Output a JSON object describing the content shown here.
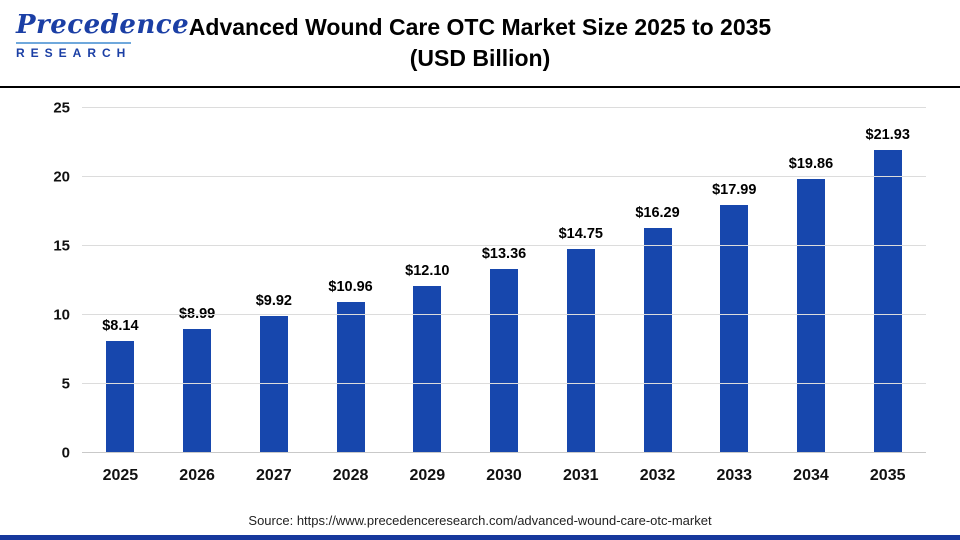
{
  "header": {
    "logo_main": "Precedence",
    "logo_sub": "RESEARCH",
    "title_line1": "Advanced Wound Care OTC Market Size 2025 to 2035",
    "title_line2": "(USD Billion)"
  },
  "chart_data": {
    "type": "bar",
    "title": "Advanced Wound Care OTC Market Size 2025 to 2035 (USD Billion)",
    "categories": [
      "2025",
      "2026",
      "2027",
      "2028",
      "2029",
      "2030",
      "2031",
      "2032",
      "2033",
      "2034",
      "2035"
    ],
    "values": [
      8.14,
      8.99,
      9.92,
      10.96,
      12.1,
      13.36,
      14.75,
      16.29,
      17.99,
      19.86,
      21.93
    ],
    "value_labels": [
      "$8.14",
      "$8.99",
      "$9.92",
      "$10.96",
      "$12.10",
      "$13.36",
      "$14.75",
      "$16.29",
      "$17.99",
      "$19.86",
      "$21.93"
    ],
    "xlabel": "",
    "ylabel": "",
    "ylim": [
      0,
      25
    ],
    "yticks": [
      0,
      5,
      10,
      15,
      20,
      25
    ],
    "grid": true,
    "legend": "none",
    "bar_color": "#1747ad"
  },
  "footer": {
    "source": "Source: https://www.precedenceresearch.com/advanced-wound-care-otc-market"
  },
  "colors": {
    "bar": "#1747ad",
    "logo_blue": "#1b3fa5",
    "bottom_strip": "#16389c",
    "gridline": "#dcdcdc"
  }
}
